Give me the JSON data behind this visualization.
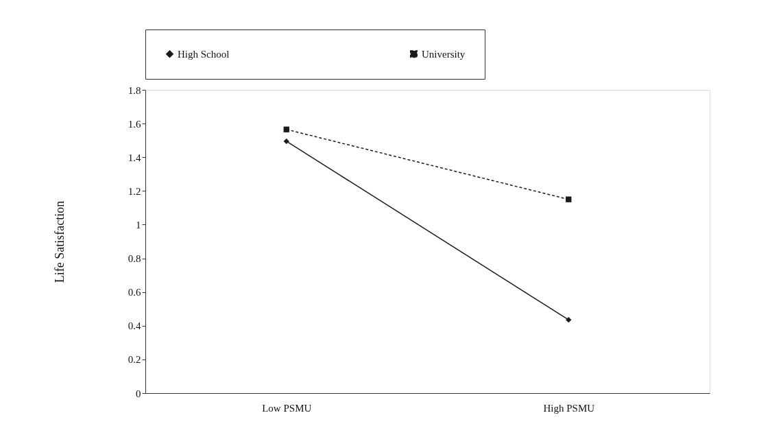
{
  "chart_data": {
    "type": "line",
    "ylabel": "Life Satisfaction",
    "categories": [
      "Low PSMU",
      "High PSMU"
    ],
    "series": [
      {
        "name": "High School",
        "color": "#1a1a1a",
        "values": [
          1.495,
          0.435
        ],
        "marker": "diamond",
        "line_style": "solid"
      },
      {
        "name": "University",
        "color": "#1a1a1a",
        "values": [
          1.565,
          1.15
        ],
        "marker": "square",
        "line_style": "dashed"
      }
    ],
    "ylim": [
      0,
      1.8
    ],
    "yticks": [
      0,
      0.2,
      0.4,
      0.6,
      0.8,
      1,
      1.2,
      1.4,
      1.6,
      1.8
    ],
    "grid": false,
    "legend": "top"
  }
}
